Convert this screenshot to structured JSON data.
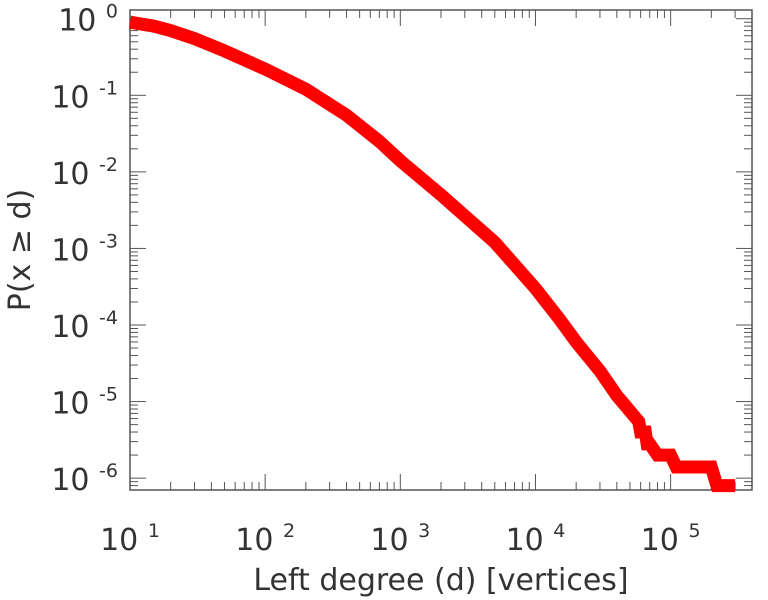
{
  "chart_data": {
    "type": "line",
    "title": "",
    "xlabel": "Left degree (d) [vertices]",
    "ylabel": "P(x ≥ d)",
    "x_scale": "log",
    "y_scale": "log",
    "xlim": [
      10,
      400000
    ],
    "ylim": [
      7e-07,
      1.3
    ],
    "grid": false,
    "legend": "none",
    "x_ticks": [
      {
        "base": "10",
        "exp": "1"
      },
      {
        "base": "10",
        "exp": "2"
      },
      {
        "base": "10",
        "exp": "3"
      },
      {
        "base": "10",
        "exp": "4"
      },
      {
        "base": "10",
        "exp": "5"
      }
    ],
    "y_ticks": [
      {
        "base": "10",
        "exp": "0"
      },
      {
        "base": "10",
        "exp": "-1"
      },
      {
        "base": "10",
        "exp": "-2"
      },
      {
        "base": "10",
        "exp": "-3"
      },
      {
        "base": "10",
        "exp": "-4"
      },
      {
        "base": "10",
        "exp": "-5"
      },
      {
        "base": "10",
        "exp": "-6"
      }
    ],
    "series": [
      {
        "color": "#ff0000",
        "x": [
          10,
          15,
          20,
          30,
          50,
          100,
          200,
          400,
          700,
          1000,
          2000,
          5000,
          10000,
          15000,
          20000,
          30000,
          40000,
          50000,
          58000,
          60000,
          65000,
          67000,
          70000,
          80000,
          100000,
          110000,
          200000,
          220000,
          300000
        ],
        "y": [
          0.9,
          0.8,
          0.7,
          0.55,
          0.38,
          0.22,
          0.12,
          0.055,
          0.025,
          0.014,
          0.005,
          0.0012,
          0.0003,
          0.00012,
          6e-05,
          2.5e-05,
          1.2e-05,
          7.5e-06,
          5.5e-06,
          4e-06,
          4e-06,
          2.8e-06,
          2.8e-06,
          2e-06,
          2e-06,
          1.4e-06,
          1.4e-06,
          8e-07,
          8e-07
        ]
      }
    ]
  }
}
